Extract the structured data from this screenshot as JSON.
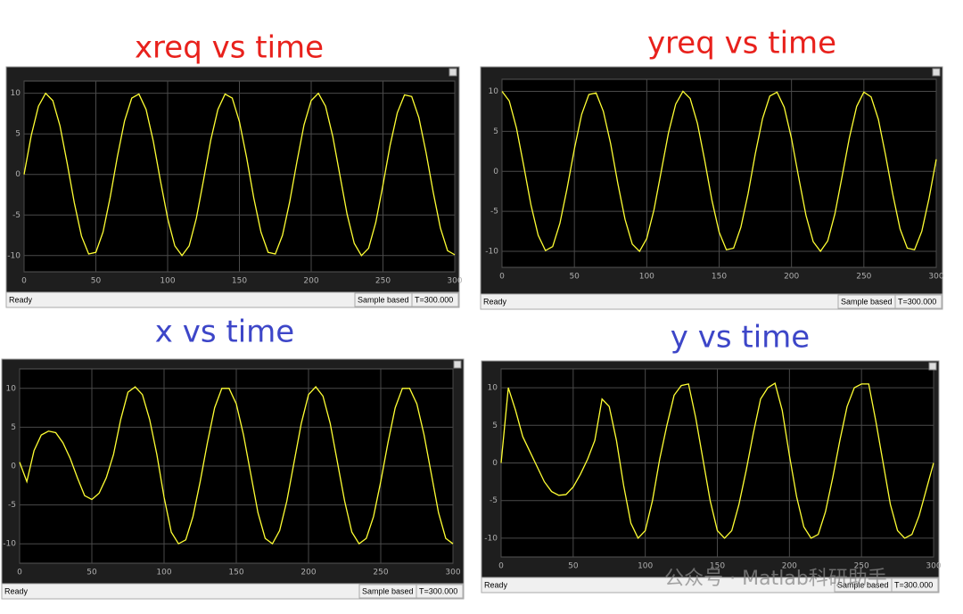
{
  "chart_data": [
    {
      "type": "line",
      "title": "xreq vs time",
      "title_color": "#e8211c",
      "color": "#ffff33",
      "grid": true,
      "xlim": [
        0,
        300
      ],
      "ylim": [
        -12,
        11.5
      ],
      "xticks": [
        0,
        50,
        100,
        150,
        200,
        250,
        300
      ],
      "yticks": [
        -10,
        -5,
        0,
        5,
        10
      ],
      "x": [
        0,
        5,
        10,
        15,
        20,
        25,
        30,
        35,
        40,
        45,
        50,
        55,
        60,
        65,
        70,
        75,
        80,
        85,
        90,
        95,
        100,
        105,
        110,
        115,
        120,
        125,
        130,
        135,
        140,
        145,
        150,
        155,
        160,
        165,
        170,
        175,
        180,
        185,
        190,
        195,
        200,
        205,
        210,
        215,
        220,
        225,
        230,
        235,
        240,
        245,
        250,
        255,
        260,
        265,
        270,
        275,
        280,
        285,
        290,
        295,
        300
      ],
      "values": [
        0,
        4.8,
        8.4,
        10,
        9.1,
        6,
        1.4,
        -3.5,
        -7.6,
        -9.8,
        -9.6,
        -7.1,
        -2.8,
        2.2,
        6.6,
        9.4,
        9.9,
        8,
        4.1,
        -0.8,
        -5.4,
        -8.8,
        -10,
        -8.8,
        -5.4,
        -0.7,
        4.2,
        8,
        9.9,
        9.4,
        6.5,
        2.1,
        -2.9,
        -7.1,
        -9.6,
        -9.8,
        -7.5,
        -3.4,
        1.5,
        6.1,
        9.1,
        10,
        8.4,
        4.7,
        -0.1,
        -4.9,
        -8.5,
        -10,
        -9.1,
        -5.9,
        -1.3,
        3.6,
        7.6,
        9.8,
        9.6,
        7,
        2.7,
        -2.2,
        -6.6,
        -9.4,
        -9.9
      ],
      "status": {
        "ready": "Ready",
        "mode": "Sample based",
        "time": "T=300.000"
      }
    },
    {
      "type": "line",
      "title": "yreq vs time",
      "title_color": "#e8211c",
      "color": "#ffff33",
      "grid": true,
      "xlim": [
        0,
        300
      ],
      "ylim": [
        -12,
        11.5
      ],
      "xticks": [
        0,
        50,
        100,
        150,
        200,
        250,
        300
      ],
      "yticks": [
        -10,
        -5,
        0,
        5,
        10
      ],
      "x": [
        0,
        5,
        10,
        15,
        20,
        25,
        30,
        35,
        40,
        45,
        50,
        55,
        60,
        65,
        70,
        75,
        80,
        85,
        90,
        95,
        100,
        105,
        110,
        115,
        120,
        125,
        130,
        135,
        140,
        145,
        150,
        155,
        160,
        165,
        170,
        175,
        180,
        185,
        190,
        195,
        200,
        205,
        210,
        215,
        220,
        225,
        230,
        235,
        240,
        245,
        250,
        255,
        260,
        265,
        270,
        275,
        280,
        285,
        290,
        295,
        300
      ],
      "values": [
        10,
        8.8,
        5.4,
        0.7,
        -4.2,
        -8,
        -9.9,
        -9.4,
        -6.5,
        -2.1,
        2.8,
        7.1,
        9.6,
        9.8,
        7.5,
        3.5,
        -1.5,
        -6,
        -9.1,
        -10,
        -8.4,
        -4.8,
        0,
        4.8,
        8.4,
        10,
        9.1,
        6,
        1.4,
        -3.6,
        -7.6,
        -9.8,
        -9.6,
        -7,
        -2.8,
        2.2,
        6.6,
        9.4,
        9.9,
        8,
        4.1,
        -0.8,
        -5.5,
        -8.8,
        -10,
        -8.7,
        -5.3,
        -0.6,
        4.2,
        8.1,
        9.9,
        9.3,
        6.5,
        2,
        -2.9,
        -7.2,
        -9.6,
        -9.8,
        -7.5,
        -3.4,
        1.5
      ],
      "status": {
        "ready": "Ready",
        "mode": "Sample based",
        "time": "T=300.000"
      }
    },
    {
      "type": "line",
      "title": "x vs time",
      "title_color": "#3d46c8",
      "color": "#ffff33",
      "grid": true,
      "xlim": [
        0,
        300
      ],
      "ylim": [
        -12.5,
        12.5
      ],
      "xticks": [
        0,
        50,
        100,
        150,
        200,
        250,
        300
      ],
      "yticks": [
        -10,
        -5,
        0,
        5,
        10
      ],
      "x": [
        0,
        5,
        10,
        15,
        20,
        25,
        30,
        35,
        40,
        45,
        50,
        55,
        60,
        65,
        70,
        75,
        80,
        85,
        90,
        95,
        100,
        105,
        110,
        115,
        120,
        125,
        130,
        135,
        140,
        145,
        150,
        155,
        160,
        165,
        170,
        175,
        180,
        185,
        190,
        195,
        200,
        205,
        210,
        215,
        220,
        225,
        230,
        235,
        240,
        245,
        250,
        255,
        260,
        265,
        270,
        275,
        280,
        285,
        290,
        295,
        300
      ],
      "values": [
        0.5,
        -2,
        2,
        4,
        4.5,
        4.3,
        3,
        1,
        -1.5,
        -3.8,
        -4.3,
        -3.5,
        -1.5,
        1.5,
        6,
        9.5,
        10.2,
        9.2,
        6,
        1.5,
        -4,
        -8.5,
        -10,
        -9.5,
        -6.5,
        -2,
        3,
        7.5,
        10,
        10,
        8,
        4,
        -1,
        -6,
        -9.3,
        -10,
        -8.3,
        -4.5,
        0.5,
        5.5,
        9.2,
        10.2,
        9,
        5.5,
        0.5,
        -4.5,
        -8.5,
        -10,
        -9.3,
        -6.5,
        -2,
        3,
        7.5,
        10,
        10,
        8,
        4,
        -1,
        -6,
        -9.3,
        -10
      ],
      "status": {
        "ready": "Ready",
        "mode": "Sample based",
        "time": "T=300.000"
      }
    },
    {
      "type": "line",
      "title": "y vs time",
      "title_color": "#3d46c8",
      "color": "#ffff33",
      "grid": true,
      "xlim": [
        0,
        300
      ],
      "ylim": [
        -12.5,
        12.5
      ],
      "xticks": [
        0,
        50,
        100,
        150,
        200,
        250,
        300
      ],
      "yticks": [
        -10,
        -5,
        0,
        5,
        10
      ],
      "x": [
        0,
        5,
        10,
        15,
        20,
        25,
        30,
        35,
        40,
        45,
        50,
        55,
        60,
        65,
        70,
        75,
        80,
        85,
        90,
        95,
        100,
        105,
        110,
        115,
        120,
        125,
        130,
        135,
        140,
        145,
        150,
        155,
        160,
        165,
        170,
        175,
        180,
        185,
        190,
        195,
        200,
        205,
        210,
        215,
        220,
        225,
        230,
        235,
        240,
        245,
        250,
        255,
        260,
        265,
        270,
        275,
        280,
        285,
        290,
        295,
        300
      ],
      "values": [
        0,
        10,
        7,
        3.5,
        1.5,
        -0.5,
        -2.5,
        -3.8,
        -4.3,
        -4.2,
        -3.2,
        -1.5,
        0.5,
        3,
        8.5,
        7.5,
        3,
        -3,
        -8,
        -10,
        -9,
        -5,
        0.5,
        5,
        9,
        10.3,
        10.5,
        6,
        0.5,
        -5,
        -9,
        -10,
        -9,
        -5.5,
        -1,
        4,
        8.5,
        10,
        10.6,
        7,
        1,
        -4.5,
        -8.5,
        -10,
        -9.5,
        -6.5,
        -2,
        3,
        7.5,
        10,
        10.5,
        10.5,
        5.5,
        0,
        -5.5,
        -9,
        -10,
        -9.5,
        -7,
        -3.5,
        0
      ],
      "status": {
        "ready": "Ready",
        "mode": "Sample based",
        "time": "T=300.000"
      }
    }
  ],
  "watermark": "公众号 · Matlab科研助手"
}
